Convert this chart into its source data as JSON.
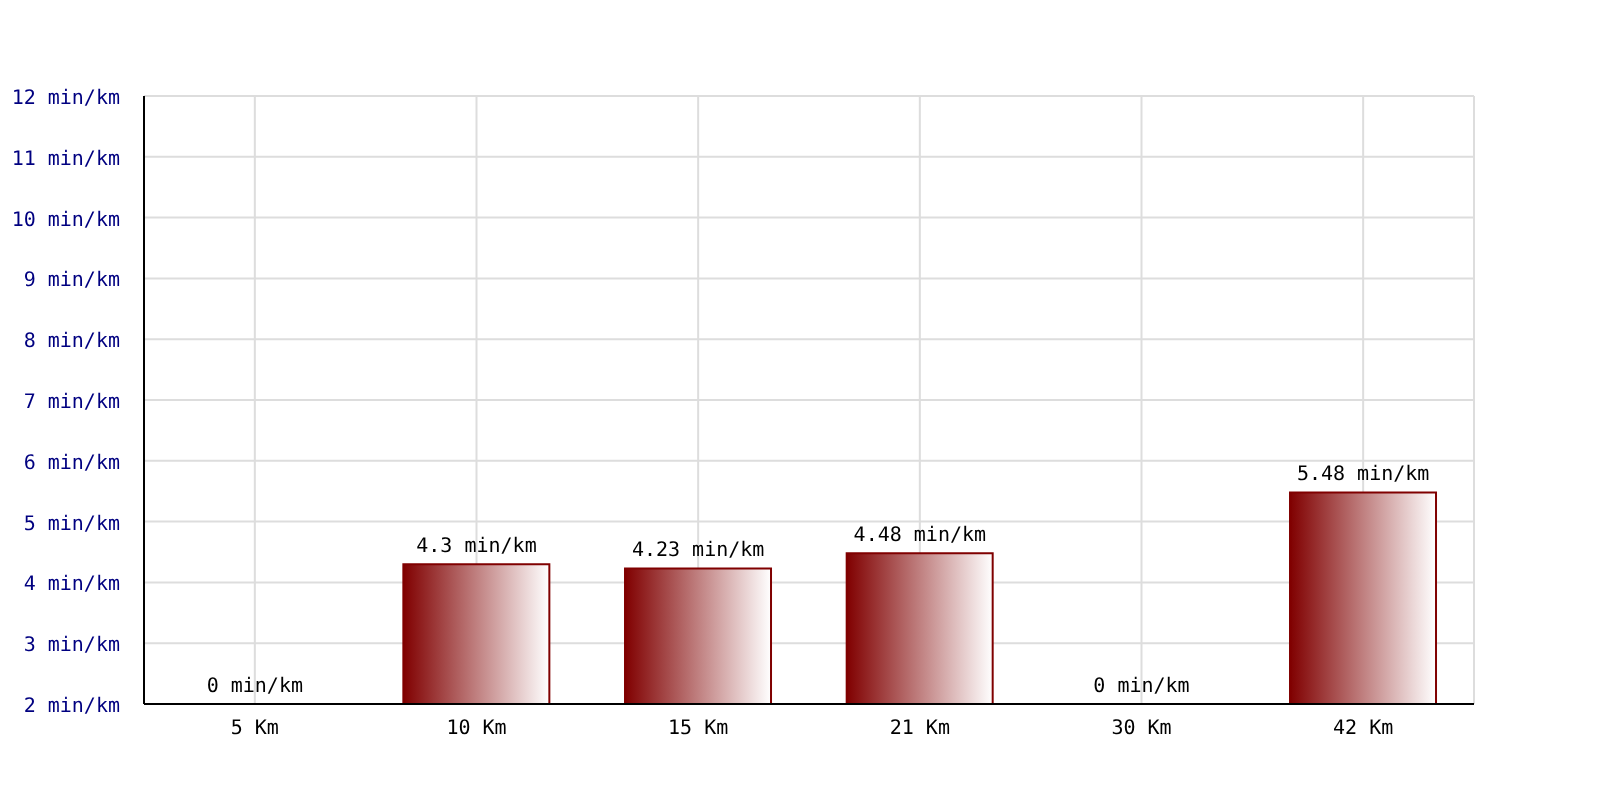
{
  "chart_data": {
    "type": "bar",
    "categories": [
      "5 Km",
      "10 Km",
      "15 Km",
      "21 Km",
      "30 Km",
      "42 Km"
    ],
    "values": [
      null,
      4.3,
      4.23,
      4.48,
      null,
      5.48
    ],
    "value_labels": [
      "0 min/km",
      "4.3 min/km",
      "4.23 min/km",
      "4.48 min/km",
      "0 min/km",
      "5.48 min/km"
    ],
    "color": "#800000",
    "ylim": [
      2,
      12
    ],
    "yticks": [
      {
        "value": 2,
        "label": "2 min/km"
      },
      {
        "value": 3,
        "label": "3 min/km"
      },
      {
        "value": 4,
        "label": "4 min/km"
      },
      {
        "value": 5,
        "label": "5 min/km"
      },
      {
        "value": 6,
        "label": "6 min/km"
      },
      {
        "value": 7,
        "label": "7 min/km"
      },
      {
        "value": 8,
        "label": "8 min/km"
      },
      {
        "value": 9,
        "label": "9 min/km"
      },
      {
        "value": 10,
        "label": "10 min/km"
      },
      {
        "value": 11,
        "label": "11 min/km"
      },
      {
        "value": 12,
        "label": "12 min/km"
      }
    ],
    "grid": true
  }
}
